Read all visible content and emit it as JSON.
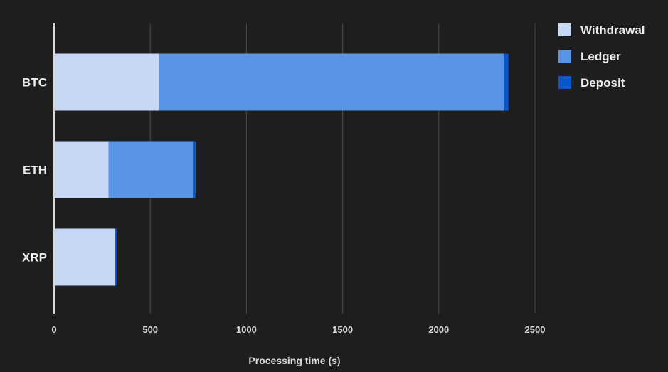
{
  "chart_data": {
    "type": "bar",
    "orientation": "horizontal",
    "stacked": true,
    "categories": [
      "BTC",
      "ETH",
      "XRP"
    ],
    "series": [
      {
        "name": "Withdrawal",
        "color": "#c6d8f6",
        "values": [
          545,
          283,
          318
        ]
      },
      {
        "name": "Ledger",
        "color": "#5995e6",
        "values": [
          1793,
          443,
          0
        ]
      },
      {
        "name": "Deposit",
        "color": "#0a56cc",
        "values": [
          24,
          10,
          7
        ]
      }
    ],
    "xlabel": "Processing time (s)",
    "ylabel": "",
    "xlim": [
      0,
      2500
    ],
    "xticks": [
      0,
      500,
      1000,
      1500,
      2000,
      2500
    ],
    "grid": true,
    "legend_position": "top-right"
  }
}
